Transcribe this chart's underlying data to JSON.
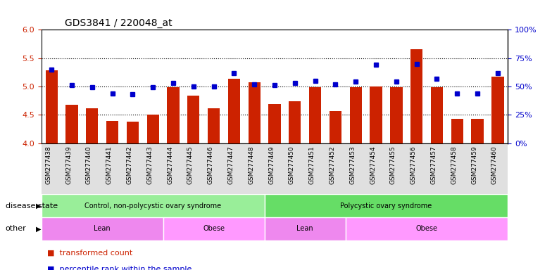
{
  "title": "GDS3841 / 220048_at",
  "samples": [
    "GSM277438",
    "GSM277439",
    "GSM277440",
    "GSM277441",
    "GSM277442",
    "GSM277443",
    "GSM277444",
    "GSM277445",
    "GSM277446",
    "GSM277447",
    "GSM277448",
    "GSM277449",
    "GSM277450",
    "GSM277451",
    "GSM277452",
    "GSM277453",
    "GSM277454",
    "GSM277455",
    "GSM277456",
    "GSM277457",
    "GSM277458",
    "GSM277459",
    "GSM277460"
  ],
  "bar_values": [
    5.28,
    4.67,
    4.61,
    4.39,
    4.38,
    4.5,
    4.98,
    4.84,
    4.61,
    5.13,
    5.07,
    4.69,
    4.74,
    4.99,
    4.57,
    4.98,
    5.0,
    4.99,
    5.65,
    4.99,
    4.43,
    4.43,
    5.17
  ],
  "percentile_values": [
    65,
    51,
    49,
    44,
    43,
    49,
    53,
    50,
    50,
    62,
    52,
    51,
    53,
    55,
    52,
    54,
    69,
    54,
    70,
    57,
    44,
    44,
    62
  ],
  "ylim_left": [
    4.0,
    6.0
  ],
  "ylim_right": [
    0,
    100
  ],
  "yticks_left": [
    4.0,
    4.5,
    5.0,
    5.5,
    6.0
  ],
  "yticks_right": [
    0,
    25,
    50,
    75,
    100
  ],
  "ytick_labels_right": [
    "0%",
    "25%",
    "50%",
    "75%",
    "100%"
  ],
  "hlines": [
    4.5,
    5.0,
    5.5
  ],
  "bar_color": "#CC2200",
  "point_color": "#0000CC",
  "bar_width": 0.6,
  "disease_state_groups": [
    {
      "label": "Control, non-polycystic ovary syndrome",
      "start": 0,
      "end": 11,
      "color": "#99EE99"
    },
    {
      "label": "Polycystic ovary syndrome",
      "start": 11,
      "end": 23,
      "color": "#66DD66"
    }
  ],
  "other_groups": [
    {
      "label": "Lean",
      "start": 0,
      "end": 6,
      "color": "#EE88EE"
    },
    {
      "label": "Obese",
      "start": 6,
      "end": 11,
      "color": "#FF99FF"
    },
    {
      "label": "Lean",
      "start": 11,
      "end": 15,
      "color": "#EE88EE"
    },
    {
      "label": "Obese",
      "start": 15,
      "end": 23,
      "color": "#FF99FF"
    }
  ],
  "legend_items": [
    {
      "label": "transformed count",
      "color": "#CC2200"
    },
    {
      "label": "percentile rank within the sample",
      "color": "#0000CC"
    }
  ],
  "disease_state_label": "disease state",
  "other_label": "other",
  "title_fontsize": 10,
  "axis_color_left": "#CC2200",
  "axis_color_right": "#0000CC",
  "xtick_bg_color": "#E0E0E0",
  "fig_bg": "#FFFFFF"
}
